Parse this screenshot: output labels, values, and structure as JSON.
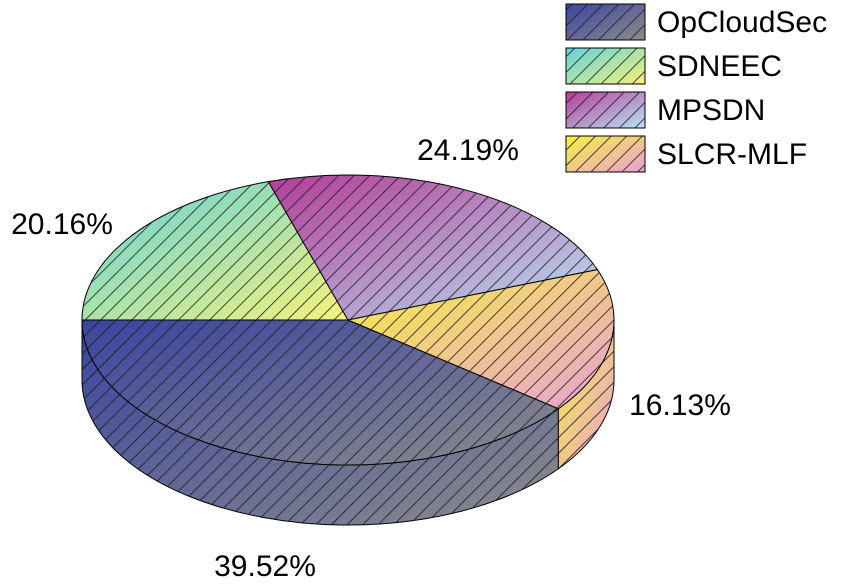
{
  "chart_data": {
    "type": "pie3d",
    "categories": [
      "OpCloudSec",
      "SDNEEC",
      "MPSDN",
      "SLCR-MLF"
    ],
    "values": [
      39.52,
      20.16,
      24.19,
      16.13
    ],
    "value_labels": [
      "39.52%",
      "20.16%",
      "24.19%",
      "16.13%"
    ],
    "colors": [
      [
        "#3a44a0",
        "#8c8c8c"
      ],
      [
        "#5fd2dc",
        "#f6f27a"
      ],
      [
        "#b43c98",
        "#b8e4f4"
      ],
      [
        "#f8f040",
        "#e8a0d4"
      ]
    ],
    "hatch": true,
    "legend": "top-right"
  }
}
